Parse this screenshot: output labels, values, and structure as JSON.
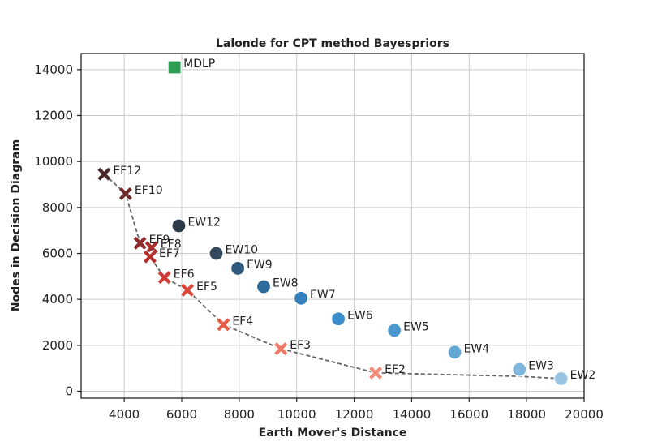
{
  "chart_data": {
    "type": "scatter",
    "title": "Lalonde for CPT method Bayespriors",
    "xlabel": "Earth Mover's Distance",
    "ylabel": "Nodes in Decision Diagram",
    "xlim": [
      2500,
      20000
    ],
    "ylim": [
      -300,
      14700
    ],
    "xticks": [
      4000,
      6000,
      8000,
      10000,
      12000,
      14000,
      16000,
      18000,
      20000
    ],
    "yticks": [
      0,
      2000,
      4000,
      6000,
      8000,
      10000,
      12000,
      14000
    ],
    "grid": true,
    "series": [
      {
        "marker": "x",
        "points": [
          {
            "label": "EF12",
            "x": 3300,
            "y": 9450,
            "color": "#4a2a2a"
          },
          {
            "label": "EF10",
            "x": 4050,
            "y": 8600,
            "color": "#6e2a2a"
          },
          {
            "label": "EF9",
            "x": 4550,
            "y": 6450,
            "color": "#8e2b2b"
          },
          {
            "label": "EF8",
            "x": 4950,
            "y": 6250,
            "color": "#a82c2c"
          },
          {
            "label": "EF7",
            "x": 4900,
            "y": 5850,
            "color": "#b52e2e"
          },
          {
            "label": "EF6",
            "x": 5400,
            "y": 4950,
            "color": "#d03b35"
          },
          {
            "label": "EF5",
            "x": 6200,
            "y": 4400,
            "color": "#d9473b"
          },
          {
            "label": "EF4",
            "x": 7450,
            "y": 2900,
            "color": "#e55c47"
          },
          {
            "label": "EF3",
            "x": 9450,
            "y": 1850,
            "color": "#ee7a64"
          },
          {
            "label": "EF2",
            "x": 12750,
            "y": 800,
            "color": "#f08b78"
          }
        ]
      },
      {
        "marker": "circle",
        "points": [
          {
            "label": "EW12",
            "x": 5900,
            "y": 7200,
            "color": "#2d3a47"
          },
          {
            "label": "EW10",
            "x": 7200,
            "y": 6000,
            "color": "#34495e"
          },
          {
            "label": "EW9",
            "x": 7950,
            "y": 5350,
            "color": "#305b7f"
          },
          {
            "label": "EW8",
            "x": 8850,
            "y": 4550,
            "color": "#2e6b9a"
          },
          {
            "label": "EW7",
            "x": 10150,
            "y": 4050,
            "color": "#347fbc"
          },
          {
            "label": "EW6",
            "x": 11450,
            "y": 3150,
            "color": "#3c8ecb"
          },
          {
            "label": "EW5",
            "x": 13400,
            "y": 2650,
            "color": "#4b99cf"
          },
          {
            "label": "EW4",
            "x": 15500,
            "y": 1700,
            "color": "#64a8d6"
          },
          {
            "label": "EW3",
            "x": 17750,
            "y": 950,
            "color": "#7fb6dd"
          },
          {
            "label": "EW2",
            "x": 19200,
            "y": 550,
            "color": "#99c4e3"
          }
        ]
      },
      {
        "marker": "square",
        "points": [
          {
            "label": "MDLP",
            "x": 5750,
            "y": 14100,
            "color": "#2e9e52"
          }
        ]
      }
    ],
    "frontier_line": {
      "style": "dashed",
      "color": "#666666",
      "points": [
        [
          3300,
          9450
        ],
        [
          4050,
          8600
        ],
        [
          4550,
          6450
        ],
        [
          4950,
          6250
        ],
        [
          4900,
          5850
        ],
        [
          5400,
          4950
        ],
        [
          6200,
          4400
        ],
        [
          7450,
          2900
        ],
        [
          9450,
          1850
        ],
        [
          12750,
          800
        ],
        [
          17750,
          650
        ],
        [
          19200,
          550
        ]
      ]
    }
  }
}
